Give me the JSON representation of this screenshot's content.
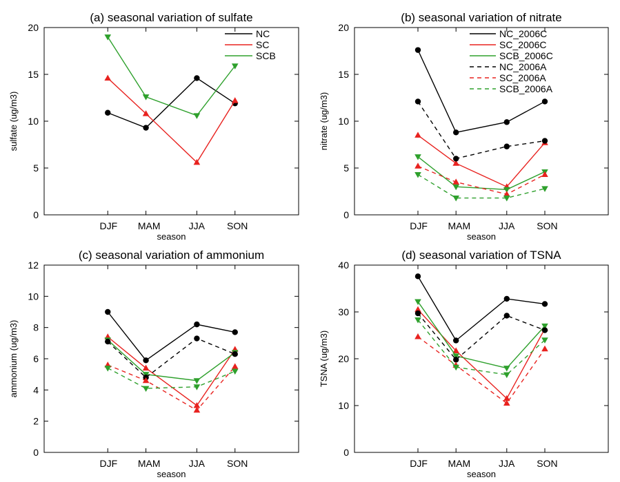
{
  "colors": {
    "NC": "#000000",
    "SC": "#e8221f",
    "SCB": "#2ea02c",
    "axis": "#000000"
  },
  "chart_data": [
    {
      "type": "line",
      "title": "(a) seasonal variation of sulfate",
      "xlabel": "season",
      "ylabel": "sulfate (ug/m3)",
      "categories": [
        "DJF",
        "MAM",
        "JJA",
        "SON"
      ],
      "ylim": [
        0,
        20
      ],
      "yticks": [
        0,
        5,
        10,
        15,
        20
      ],
      "yticklabels": [
        "0",
        "5",
        "10",
        "15",
        "20"
      ],
      "legend_position": "top-right",
      "series": [
        {
          "name": "NC",
          "values": [
            10.9,
            9.3,
            14.6,
            11.9
          ],
          "color": "NC",
          "dash": "solid",
          "marker": "circle"
        },
        {
          "name": "SC",
          "values": [
            14.6,
            10.8,
            5.6,
            12.2
          ],
          "color": "SC",
          "dash": "solid",
          "marker": "triangle-up"
        },
        {
          "name": "SCB",
          "values": [
            19.0,
            12.6,
            10.6,
            15.9
          ],
          "color": "SCB",
          "dash": "solid",
          "marker": "triangle-down"
        }
      ]
    },
    {
      "type": "line",
      "title": "(b) seasonal variation of nitrate",
      "xlabel": "season",
      "ylabel": "nitrate (ug/m3)",
      "categories": [
        "DJF",
        "MAM",
        "JJA",
        "SON"
      ],
      "ylim": [
        0,
        20
      ],
      "yticks": [
        0,
        5,
        10,
        15,
        20
      ],
      "yticklabels": [
        "0",
        "5",
        "10",
        "15",
        "20"
      ],
      "legend_position": "top-right",
      "series": [
        {
          "name": "NC_2006C",
          "values": [
            17.6,
            8.8,
            9.9,
            12.1
          ],
          "color": "NC",
          "dash": "solid",
          "marker": "circle"
        },
        {
          "name": "SC_2006C",
          "values": [
            8.5,
            5.5,
            3.0,
            7.7
          ],
          "color": "SC",
          "dash": "solid",
          "marker": "triangle-up"
        },
        {
          "name": "SCB_2006C",
          "values": [
            6.2,
            3.0,
            2.7,
            4.6
          ],
          "color": "SCB",
          "dash": "solid",
          "marker": "triangle-down"
        },
        {
          "name": "NC_2006A",
          "values": [
            12.1,
            6.0,
            7.3,
            7.9
          ],
          "color": "NC",
          "dash": "dashed",
          "marker": "circle"
        },
        {
          "name": "SC_2006A",
          "values": [
            5.2,
            3.5,
            2.2,
            4.3
          ],
          "color": "SC",
          "dash": "dashed",
          "marker": "triangle-up"
        },
        {
          "name": "SCB_2006A",
          "values": [
            4.3,
            1.8,
            1.8,
            2.8
          ],
          "color": "SCB",
          "dash": "dashed",
          "marker": "triangle-down"
        }
      ]
    },
    {
      "type": "line",
      "title": "(c) seasonal variation of ammonium",
      "xlabel": "season",
      "ylabel": "ammonium (ug/m3)",
      "categories": [
        "DJF",
        "MAM",
        "JJA",
        "SON"
      ],
      "ylim": [
        0,
        12
      ],
      "yticks": [
        0,
        2,
        4,
        6,
        8,
        10,
        12
      ],
      "yticklabels": [
        "0",
        "2",
        "4",
        "6",
        "8",
        "10",
        "12"
      ],
      "series": [
        {
          "name": "NC_2006C",
          "values": [
            9.0,
            5.9,
            8.2,
            7.7
          ],
          "color": "NC",
          "dash": "solid",
          "marker": "circle"
        },
        {
          "name": "SC_2006C",
          "values": [
            7.4,
            5.4,
            3.0,
            6.6
          ],
          "color": "SC",
          "dash": "solid",
          "marker": "triangle-up"
        },
        {
          "name": "SCB_2006C",
          "values": [
            7.2,
            5.0,
            4.6,
            6.4
          ],
          "color": "SCB",
          "dash": "solid",
          "marker": "triangle-down"
        },
        {
          "name": "NC_2006A",
          "values": [
            7.1,
            4.8,
            7.3,
            6.3
          ],
          "color": "NC",
          "dash": "dashed",
          "marker": "circle"
        },
        {
          "name": "SC_2006A",
          "values": [
            5.6,
            4.6,
            2.7,
            5.5
          ],
          "color": "SC",
          "dash": "dashed",
          "marker": "triangle-up"
        },
        {
          "name": "SCB_2006A",
          "values": [
            5.4,
            4.1,
            4.2,
            5.2
          ],
          "color": "SCB",
          "dash": "dashed",
          "marker": "triangle-down"
        }
      ]
    },
    {
      "type": "line",
      "title": "(d) seasonal variation of TSNA",
      "xlabel": "season",
      "ylabel": "TSNA (ug/m3)",
      "categories": [
        "DJF",
        "MAM",
        "JJA",
        "SON"
      ],
      "ylim": [
        0,
        40
      ],
      "yticks": [
        0,
        10,
        20,
        30,
        40
      ],
      "yticklabels": [
        "0",
        "10",
        "20",
        "30",
        "40"
      ],
      "series": [
        {
          "name": "NC_2006C",
          "values": [
            37.6,
            23.9,
            32.8,
            31.7
          ],
          "color": "NC",
          "dash": "solid",
          "marker": "circle"
        },
        {
          "name": "SC_2006C",
          "values": [
            30.5,
            21.7,
            11.5,
            26.4
          ],
          "color": "SC",
          "dash": "solid",
          "marker": "triangle-up"
        },
        {
          "name": "SCB_2006C",
          "values": [
            32.2,
            20.6,
            18.0,
            27.0
          ],
          "color": "SCB",
          "dash": "solid",
          "marker": "triangle-down"
        },
        {
          "name": "NC_2006A",
          "values": [
            29.7,
            19.8,
            29.2,
            26.1
          ],
          "color": "NC",
          "dash": "dashed",
          "marker": "circle"
        },
        {
          "name": "SC_2006A",
          "values": [
            24.7,
            18.6,
            10.5,
            22.1
          ],
          "color": "SC",
          "dash": "dashed",
          "marker": "triangle-up"
        },
        {
          "name": "SCB_2006A",
          "values": [
            28.3,
            18.2,
            16.6,
            24.0
          ],
          "color": "SCB",
          "dash": "dashed",
          "marker": "triangle-down"
        }
      ]
    }
  ]
}
